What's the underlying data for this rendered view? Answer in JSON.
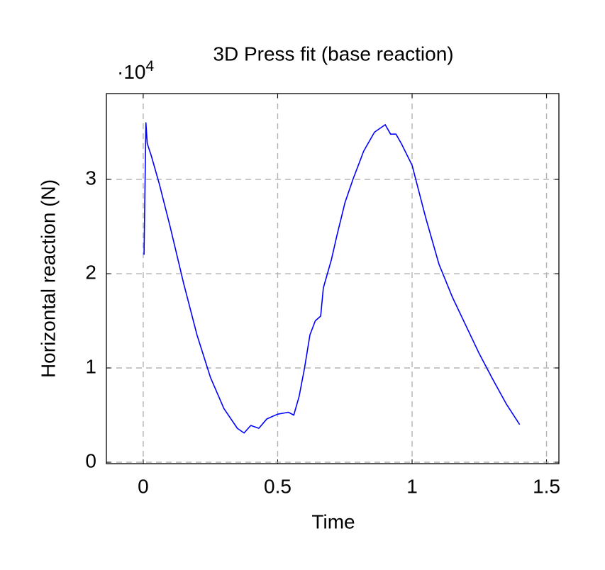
{
  "chart_data": {
    "type": "line",
    "title": "3D Press fit (base reaction)",
    "x_label": "Time",
    "y_label": "Horizontal reaction (N)",
    "y_multiplier": "·10",
    "y_multiplier_exponent": "4",
    "x": [
      0.003,
      0.01,
      0.015,
      0.03,
      0.06,
      0.1,
      0.15,
      0.2,
      0.25,
      0.3,
      0.35,
      0.375,
      0.4,
      0.43,
      0.46,
      0.5,
      0.54,
      0.56,
      0.58,
      0.6,
      0.62,
      0.64,
      0.66,
      0.67,
      0.7,
      0.72,
      0.75,
      0.78,
      0.82,
      0.86,
      0.9,
      0.92,
      0.94,
      0.96,
      1.0,
      1.05,
      1.1,
      1.15,
      1.2,
      1.25,
      1.3,
      1.35,
      1.4
    ],
    "values": [
      2.2,
      3.6,
      3.38,
      3.25,
      2.95,
      2.5,
      1.9,
      1.35,
      0.9,
      0.57,
      0.36,
      0.31,
      0.39,
      0.36,
      0.46,
      0.51,
      0.53,
      0.5,
      0.7,
      1.0,
      1.35,
      1.5,
      1.55,
      1.85,
      2.15,
      2.4,
      2.75,
      3.0,
      3.3,
      3.5,
      3.58,
      3.48,
      3.48,
      3.38,
      3.15,
      2.6,
      2.1,
      1.75,
      1.45,
      1.15,
      0.88,
      0.62,
      0.4
    ],
    "color": "#0000ff",
    "xlim": [
      -0.137,
      1.546
    ],
    "ylim": [
      -0.015,
      3.91
    ],
    "xticks": [
      0,
      0.5,
      1,
      1.5
    ],
    "yticks": [
      0,
      1,
      2,
      3
    ],
    "grid": true
  }
}
